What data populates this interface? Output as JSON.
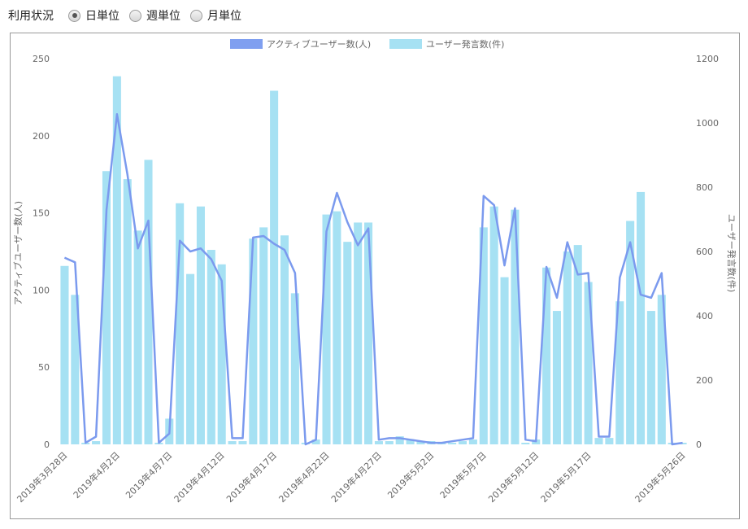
{
  "header": {
    "title": "利用状況",
    "options": [
      {
        "label": "日単位",
        "selected": true
      },
      {
        "label": "週単位",
        "selected": false
      },
      {
        "label": "月単位",
        "selected": false
      }
    ]
  },
  "colors": {
    "line": "#7b9aee",
    "bar": "#a6e1f3",
    "legend_line": "#7f9ff0",
    "legend_bar": "#a6e1f3"
  },
  "chart_data": {
    "type": "bar",
    "legend": [
      "アクティブユーザー数(人)",
      "ユーザー発言数(件)"
    ],
    "legend_position": "top-center",
    "grid": false,
    "x_tick_labels": [
      "2019年3月28日",
      "2019年4月2日",
      "2019年4月7日",
      "2019年4月12日",
      "2019年4月17日",
      "2019年4月22日",
      "2019年4月27日",
      "2019年5月2日",
      "2019年5月7日",
      "2019年5月12日",
      "2019年5月17日",
      "2019年5月26日"
    ],
    "x_tick_index": [
      0,
      5,
      10,
      15,
      20,
      25,
      30,
      35,
      40,
      45,
      50,
      59
    ],
    "categories": [
      "2019-03-28",
      "2019-03-29",
      "2019-03-30",
      "2019-03-31",
      "2019-04-01",
      "2019-04-02",
      "2019-04-03",
      "2019-04-04",
      "2019-04-05",
      "2019-04-06",
      "2019-04-07",
      "2019-04-08",
      "2019-04-09",
      "2019-04-10",
      "2019-04-11",
      "2019-04-12",
      "2019-04-13",
      "2019-04-14",
      "2019-04-15",
      "2019-04-16",
      "2019-04-17",
      "2019-04-18",
      "2019-04-19",
      "2019-04-20",
      "2019-04-21",
      "2019-04-22",
      "2019-04-23",
      "2019-04-24",
      "2019-04-25",
      "2019-04-26",
      "2019-04-27",
      "2019-04-28",
      "2019-04-29",
      "2019-04-30",
      "2019-05-01",
      "2019-05-02",
      "2019-05-03",
      "2019-05-04",
      "2019-05-05",
      "2019-05-06",
      "2019-05-07",
      "2019-05-08",
      "2019-05-09",
      "2019-05-10",
      "2019-05-11",
      "2019-05-12",
      "2019-05-13",
      "2019-05-14",
      "2019-05-15",
      "2019-05-16",
      "2019-05-17",
      "2019-05-18",
      "2019-05-19",
      "2019-05-20",
      "2019-05-21",
      "2019-05-22",
      "2019-05-23",
      "2019-05-24",
      "2019-05-25",
      "2019-05-26"
    ],
    "y_left": {
      "label": "アクティブユーザー数(人)",
      "range": [
        0,
        250
      ],
      "ticks": [
        0,
        50,
        100,
        150,
        200,
        250
      ]
    },
    "y_right": {
      "label": "ユーザー発言数(件)",
      "range": [
        0,
        1200
      ],
      "ticks": [
        0,
        200,
        400,
        600,
        800,
        1000,
        1200
      ]
    },
    "series": [
      {
        "name": "ユーザー発言数(件)",
        "type": "bar",
        "axis": "right",
        "values": [
          555,
          465,
          5,
          10,
          850,
          1145,
          825,
          665,
          885,
          5,
          80,
          750,
          530,
          740,
          605,
          560,
          10,
          10,
          640,
          675,
          1100,
          650,
          470,
          5,
          15,
          715,
          725,
          630,
          690,
          690,
          10,
          10,
          25,
          15,
          10,
          10,
          5,
          5,
          10,
          15,
          675,
          740,
          520,
          730,
          5,
          15,
          550,
          415,
          600,
          620,
          505,
          20,
          20,
          445,
          695,
          785,
          415,
          465,
          5,
          5
        ]
      },
      {
        "name": "アクティブユーザー数(人)",
        "type": "line",
        "axis": "left",
        "values": [
          121,
          118,
          1,
          5,
          152,
          214,
          175,
          127,
          145,
          1,
          7,
          132,
          125,
          127,
          120,
          106,
          4,
          4,
          134,
          135,
          130,
          126,
          111,
          0,
          3,
          138,
          163,
          144,
          129,
          140,
          3,
          4,
          4,
          3,
          2,
          1,
          1,
          2,
          3,
          4,
          161,
          155,
          116,
          153,
          3,
          2,
          115,
          95,
          131,
          110,
          111,
          5,
          5,
          108,
          131,
          97,
          95,
          111,
          0,
          1
        ]
      }
    ]
  }
}
